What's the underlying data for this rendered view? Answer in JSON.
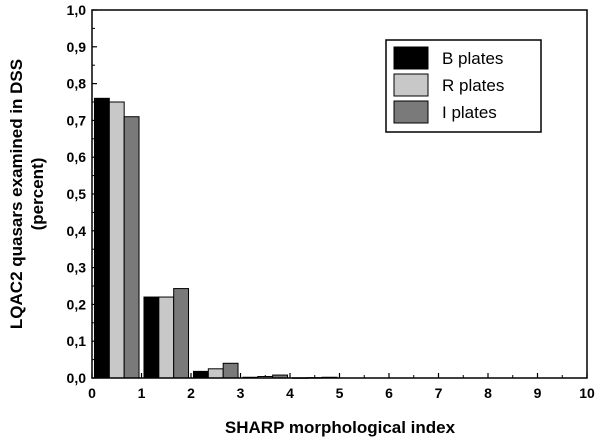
{
  "chart_data": {
    "type": "bar",
    "xlabel": "SHARP morphological index",
    "ylabel_lines": [
      "LQAC2 quasars examined in DSS",
      "(percent)"
    ],
    "xlim": [
      0,
      10
    ],
    "ylim": [
      0,
      1.0
    ],
    "x_tick_labels": [
      "0",
      "1",
      "2",
      "3",
      "4",
      "5",
      "6",
      "7",
      "8",
      "9",
      "10"
    ],
    "y_tick_labels": [
      "0,0",
      "0,1",
      "0,2",
      "0,3",
      "0,4",
      "0,5",
      "0,6",
      "0,7",
      "0,8",
      "0,9",
      "1,0"
    ],
    "categories": [
      0.5,
      1.5,
      2.5,
      3.5,
      4.5
    ],
    "series": [
      {
        "name": "B plates",
        "color": "#000000",
        "values": [
          0.76,
          0.22,
          0.018,
          0.002,
          0.0005
        ]
      },
      {
        "name": "R plates",
        "color": "#c8c8c8",
        "values": [
          0.75,
          0.22,
          0.025,
          0.004,
          0.001
        ]
      },
      {
        "name": "I plates",
        "color": "#7a7a7a",
        "values": [
          0.71,
          0.243,
          0.04,
          0.008,
          0.002
        ]
      }
    ],
    "legend_position": "top-right",
    "grid": false
  }
}
